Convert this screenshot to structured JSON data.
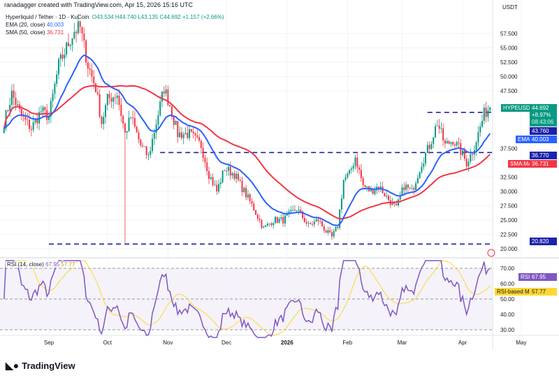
{
  "header": {
    "credit": "ranadagger created with TradingView.com, Apr 15, 2026 15:16 UTC"
  },
  "legend": {
    "symbol": "Hyperliquid / Tether · 1D · KuCoin",
    "o": "O43.534",
    "h": "H44.740",
    "l": "L43.135",
    "c": "C44.692",
    "chg": "+1.157 (+2.66%)",
    "ema_label": "EMA (20, close)",
    "ema_val": "40.003",
    "sma_label": "SMA (50, close)",
    "sma_val": "36.731"
  },
  "rsi_legend": {
    "label": "RSI (14, close)",
    "rsi": "67.95",
    "ma": "57.77"
  },
  "axis": {
    "currency": "USDT",
    "price_ticks": [
      "57.500",
      "55.000",
      "52.500",
      "50.000",
      "47.500",
      "37.500",
      "32.500",
      "30.000",
      "27.500",
      "25.000",
      "22.500",
      "20.000"
    ],
    "rsi_ticks": [
      "70.00",
      "60.00",
      "50.00",
      "40.00",
      "30.00"
    ],
    "time_ticks": [
      "Sep",
      "Oct",
      "Nov",
      "Dec",
      "2026",
      "Feb",
      "Mar",
      "Apr",
      "May"
    ]
  },
  "tags": {
    "symbol": "HYPEUSDT",
    "price": "44.692",
    "pct": "+8.97%",
    "countdown": "08:43:06",
    "line1": "43.760",
    "ema": "EMA",
    "ema_val": "40.003",
    "line2": "36.770",
    "sma": "SMA:MA",
    "sma_val": "36.731",
    "line3": "20.820",
    "rsi": "RSI",
    "rsi_val": "67.95",
    "rsima": "RSI-based MA",
    "rsima_val": "57.77"
  },
  "footer": {
    "brand": "TradingView"
  },
  "colors": {
    "up": "#089981",
    "down": "#f23645",
    "ema": "#2962ff",
    "sma": "#f23645",
    "rsi": "#7e57c2",
    "rsima": "#fdd835",
    "hline": "#1e22aa"
  },
  "chart_data": {
    "type": "candlestick",
    "symbol": "HYPEUSDT",
    "timeframe": "1D",
    "hlines": [
      43.76,
      36.77,
      20.82
    ],
    "waypoints": [
      [
        "2025-08-09",
        42
      ],
      [
        "2025-08-13",
        47
      ],
      [
        "2025-08-18",
        43
      ],
      [
        "2025-08-23",
        41
      ],
      [
        "2025-08-28",
        44
      ],
      [
        "2025-09-01",
        43
      ],
      [
        "2025-09-06",
        52
      ],
      [
        "2025-09-10",
        55
      ],
      [
        "2025-09-14",
        58
      ],
      [
        "2025-09-17",
        58.5
      ],
      [
        "2025-09-21",
        52
      ],
      [
        "2025-09-25",
        48
      ],
      [
        "2025-09-28",
        42
      ],
      [
        "2025-10-01",
        46
      ],
      [
        "2025-10-06",
        47
      ],
      [
        "2025-10-10",
        40
      ],
      [
        "2025-10-13",
        43
      ],
      [
        "2025-10-18",
        38
      ],
      [
        "2025-10-22",
        36
      ],
      [
        "2025-10-26",
        42
      ],
      [
        "2025-10-30",
        48
      ],
      [
        "2025-11-02",
        45
      ],
      [
        "2025-11-06",
        40
      ],
      [
        "2025-11-12",
        40
      ],
      [
        "2025-11-18",
        38
      ],
      [
        "2025-11-22",
        33
      ],
      [
        "2025-11-26",
        30
      ],
      [
        "2025-11-30",
        34
      ],
      [
        "2025-12-05",
        33
      ],
      [
        "2025-12-10",
        30
      ],
      [
        "2025-12-15",
        27
      ],
      [
        "2025-12-20",
        23.5
      ],
      [
        "2025-12-25",
        25
      ],
      [
        "2025-12-30",
        25
      ],
      [
        "2026-01-06",
        27
      ],
      [
        "2026-01-12",
        24
      ],
      [
        "2026-01-17",
        25
      ],
      [
        "2026-01-21",
        23
      ],
      [
        "2026-01-24",
        22
      ],
      [
        "2026-01-27",
        24
      ],
      [
        "2026-01-30",
        32
      ],
      [
        "2026-02-02",
        33
      ],
      [
        "2026-02-05",
        36
      ],
      [
        "2026-02-09",
        31
      ],
      [
        "2026-02-13",
        30
      ],
      [
        "2026-02-17",
        31
      ],
      [
        "2026-02-21",
        29
      ],
      [
        "2026-02-26",
        27
      ],
      [
        "2026-03-02",
        31
      ],
      [
        "2026-03-06",
        30
      ],
      [
        "2026-03-11",
        35
      ],
      [
        "2026-03-15",
        38
      ],
      [
        "2026-03-19",
        42
      ],
      [
        "2026-03-23",
        38
      ],
      [
        "2026-03-27",
        39
      ],
      [
        "2026-03-31",
        37
      ],
      [
        "2026-04-03",
        35
      ],
      [
        "2026-04-06",
        37
      ],
      [
        "2026-04-09",
        40
      ],
      [
        "2026-04-12",
        43.5
      ],
      [
        "2026-04-15",
        44.692
      ]
    ],
    "wick_low": [
      "2025-10-10",
      21
    ],
    "ylim": [
      19.5,
      60
    ],
    "rsi_ylim": [
      25,
      75
    ]
  }
}
